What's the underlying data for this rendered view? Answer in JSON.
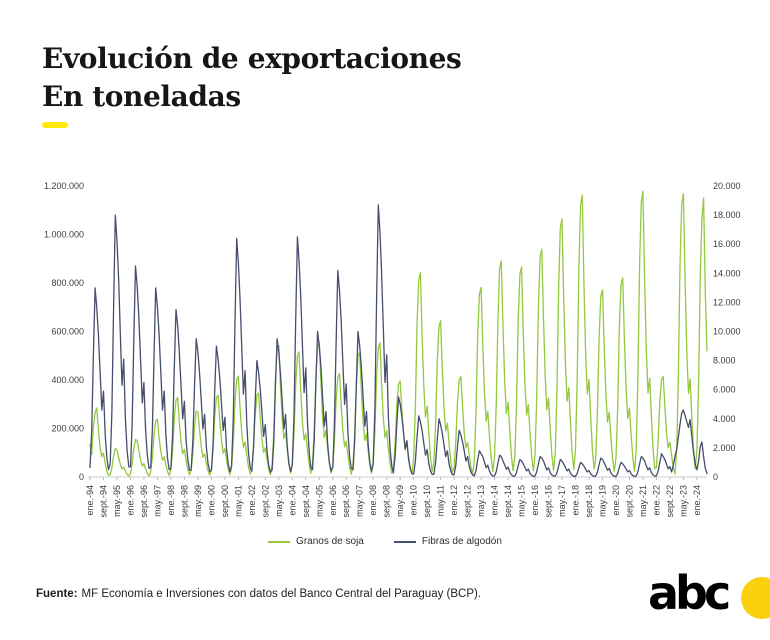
{
  "header": {
    "title_line1": "Evolución de exportaciones",
    "title_line2": "En toneladas",
    "accent_color": "#ffe80a"
  },
  "chart_data": {
    "type": "line",
    "title": "Evolución de exportaciones",
    "subtitle": "En toneladas",
    "grid": false,
    "legend_position": "bottom",
    "x_axis": {
      "start": "1994-01",
      "end": "2024-07",
      "frequency": "monthly",
      "tick_every_months": 8,
      "tick_labels": [
        "ene.-94",
        "sept.-94",
        "may.-95",
        "ene.-96",
        "sept.-96",
        "may.-97",
        "ene.-98",
        "sept.-98",
        "may.-99",
        "ene.-00",
        "sept.-00",
        "may.-01",
        "ene.-02",
        "sept.-02",
        "may.-03",
        "ene.-04",
        "sept.-04",
        "may.-05",
        "ene.-06",
        "sept.-06",
        "may.-07",
        "ene.-08",
        "sept.-08",
        "may.-09",
        "ene.-10",
        "sept.-10",
        "may.-11",
        "ene.-12",
        "sept.-12",
        "may.-13",
        "ene.-14",
        "sept.-14",
        "may.-15",
        "ene.-16",
        "sept.-16",
        "may.-17",
        "ene.-18",
        "sept.-18",
        "may.-19",
        "ene.-20",
        "sept.-20",
        "may.-21",
        "ene.-22",
        "sept.-22",
        "may.-23",
        "ene.-24"
      ]
    },
    "y_left": {
      "min": 0,
      "max": 1200000,
      "tick_labels": [
        "0",
        "200.000",
        "400.000",
        "600.000",
        "800.000",
        "1.000.000",
        "1.200.000"
      ]
    },
    "y_right": {
      "min": 0,
      "max": 20000,
      "tick_labels": [
        "0",
        "2.000",
        "4.000",
        "6.000",
        "8.000",
        "10.000",
        "12.000",
        "14.000",
        "16.000",
        "18.000",
        "20.000"
      ]
    },
    "series": [
      {
        "name": "Granos de soja",
        "axis": "left",
        "color": "#94c83f",
        "values": [
          135000,
          92000,
          208000,
          264000,
          285000,
          198000,
          122000,
          84000,
          99000,
          56000,
          22000,
          7000,
          10000,
          38000,
          86000,
          118000,
          111000,
          79000,
          52000,
          34000,
          41000,
          24000,
          11000,
          4000,
          14000,
          52000,
          118000,
          155000,
          149000,
          108000,
          70000,
          45000,
          55000,
          33000,
          15000,
          5000,
          22000,
          80000,
          176000,
          231000,
          238000,
          163000,
          105000,
          69000,
          82000,
          50000,
          22000,
          7000,
          31000,
          112000,
          243000,
          318000,
          327000,
          226000,
          146000,
          96000,
          113000,
          70000,
          31000,
          9000,
          26000,
          95000,
          206000,
          272000,
          268000,
          192000,
          124000,
          82000,
          95000,
          59000,
          26000,
          8000,
          32000,
          116000,
          250000,
          328000,
          337000,
          233000,
          150000,
          99000,
          117000,
          72000,
          32000,
          10000,
          40000,
          144000,
          310000,
          402000,
          416000,
          288000,
          185000,
          123000,
          144000,
          89000,
          40000,
          12000,
          33000,
          120000,
          258000,
          336000,
          346000,
          240000,
          154000,
          102000,
          120000,
          74000,
          33000,
          10000,
          52000,
          187000,
          402000,
          521000,
          541000,
          374000,
          240000,
          159000,
          187000,
          115000,
          52000,
          16000,
          50000,
          178000,
          384000,
          497000,
          516000,
          357000,
          229000,
          152000,
          178000,
          110000,
          50000,
          15000,
          53000,
          192000,
          413000,
          535000,
          554000,
          384000,
          246000,
          163000,
          192000,
          118000,
          53000,
          16000,
          41000,
          147000,
          317000,
          411000,
          426000,
          295000,
          189000,
          125000,
          147000,
          91000,
          41000,
          12000,
          49000,
          178000,
          383000,
          496000,
          514000,
          356000,
          228000,
          151000,
          178000,
          109000,
          49000,
          15000,
          53000,
          191000,
          412000,
          534000,
          553000,
          383000,
          245000,
          162000,
          191000,
          117000,
          53000,
          16000,
          38000,
          137000,
          295000,
          383000,
          396000,
          274000,
          176000,
          117000,
          137000,
          84000,
          38000,
          12000,
          81000,
          291000,
          627000,
          813000,
          842000,
          583000,
          374000,
          248000,
          291000,
          179000,
          81000,
          24000,
          62000,
          222000,
          479000,
          622000,
          644000,
          446000,
          286000,
          190000,
          222000,
          137000,
          62000,
          19000,
          41000,
          146000,
          312000,
          400000,
          414000,
          286000,
          183000,
          121000,
          143000,
          88000,
          41000,
          13000,
          75000,
          270000,
          583000,
          755000,
          782000,
          541000,
          347000,
          230000,
          270000,
          166000,
          75000,
          23000,
          86000,
          308000,
          664000,
          860000,
          891000,
          617000,
          396000,
          262000,
          308000,
          189000,
          86000,
          26000,
          83000,
          299000,
          645000,
          836000,
          866000,
          600000,
          385000,
          255000,
          299000,
          184000,
          83000,
          25000,
          90000,
          325000,
          701000,
          908000,
          940000,
          651000,
          418000,
          277000,
          325000,
          200000,
          90000,
          27000,
          102000,
          368000,
          793000,
          1027000,
          1064000,
          737000,
          473000,
          313000,
          368000,
          227000,
          102000,
          31000,
          112000,
          402000,
          867000,
          1123000,
          1163000,
          805000,
          517000,
          342000,
          402000,
          247000,
          112000,
          34000,
          74000,
          267000,
          575000,
          745000,
          772000,
          535000,
          343000,
          227000,
          267000,
          164000,
          74000,
          22000,
          79000,
          284000,
          612000,
          793000,
          821000,
          569000,
          365000,
          242000,
          284000,
          175000,
          79000,
          24000,
          113000,
          407000,
          878000,
          1137000,
          1178000,
          816000,
          523000,
          347000,
          407000,
          250000,
          113000,
          34000,
          40000,
          144000,
          310000,
          401000,
          415000,
          287000,
          184000,
          122000,
          143000,
          88000,
          40000,
          12000,
          112000,
          404000,
          871000,
          1128000,
          1168000,
          809000,
          519000,
          344000,
          404000,
          248000,
          112000,
          34000,
          110000,
          385000,
          835000,
          1060000,
          1150000,
          760000,
          520000
        ]
      },
      {
        "name": "Fibras de algodón",
        "axis": "right",
        "color": "#474d6d",
        "values": [
          650,
          3200,
          8400,
          13000,
          11700,
          9800,
          7200,
          4600,
          5900,
          2900,
          1300,
          500,
          900,
          4500,
          11700,
          18000,
          16200,
          13500,
          9900,
          6300,
          8100,
          4000,
          1800,
          700,
          700,
          3600,
          9400,
          14500,
          13100,
          10900,
          8000,
          5100,
          6500,
          3200,
          1500,
          600,
          650,
          3300,
          8500,
          13000,
          11700,
          9800,
          7200,
          4600,
          5900,
          2900,
          1300,
          500,
          580,
          2900,
          7500,
          11500,
          10400,
          8600,
          6300,
          4000,
          5200,
          2500,
          1200,
          460,
          480,
          2400,
          6200,
          9500,
          8600,
          7100,
          5200,
          3300,
          4300,
          2100,
          950,
          380,
          450,
          2300,
          5900,
          9000,
          8100,
          6800,
          5000,
          3200,
          4100,
          2000,
          900,
          360,
          820,
          4100,
          10700,
          16400,
          14800,
          12300,
          9000,
          5700,
          7300,
          3600,
          1600,
          650,
          400,
          2000,
          5200,
          8000,
          7200,
          6000,
          4400,
          2800,
          3600,
          1800,
          800,
          320,
          480,
          2400,
          6200,
          9500,
          8600,
          7100,
          5200,
          3300,
          4300,
          2100,
          950,
          380,
          830,
          4200,
          10800,
          16500,
          14900,
          12500,
          9100,
          5800,
          7500,
          3700,
          1700,
          660,
          500,
          2500,
          6500,
          10000,
          9000,
          7500,
          5500,
          3500,
          4500,
          2200,
          1000,
          400,
          710,
          3600,
          9200,
          14200,
          12800,
          10700,
          7800,
          5000,
          6400,
          3100,
          1400,
          570,
          500,
          2500,
          6500,
          10000,
          9000,
          7500,
          5500,
          3500,
          4500,
          2200,
          1000,
          400,
          940,
          4700,
          12200,
          18700,
          16800,
          14000,
          10300,
          6500,
          8400,
          4100,
          1900,
          750,
          280,
          1400,
          3600,
          5500,
          5000,
          4100,
          3000,
          1900,
          2500,
          1200,
          550,
          220,
          210,
          1100,
          2700,
          4200,
          3800,
          3200,
          2300,
          1500,
          1900,
          920,
          420,
          170,
          200,
          1000,
          2600,
          4000,
          3600,
          3000,
          2200,
          1400,
          1800,
          880,
          400,
          160,
          160,
          800,
          2100,
          3200,
          2900,
          2400,
          1800,
          1100,
          1400,
          700,
          320,
          130,
          90,
          450,
          1200,
          1800,
          1600,
          1400,
          1000,
          630,
          810,
          400,
          180,
          70,
          80,
          380,
          980,
          1500,
          1400,
          1100,
          830,
          530,
          680,
          330,
          150,
          60,
          60,
          300,
          780,
          1200,
          1100,
          900,
          660,
          420,
          540,
          260,
          120,
          50,
          70,
          350,
          910,
          1400,
          1300,
          1100,
          770,
          490,
          630,
          310,
          140,
          60,
          60,
          300,
          780,
          1200,
          1100,
          900,
          660,
          420,
          540,
          260,
          120,
          50,
          50,
          250,
          650,
          1000,
          900,
          750,
          550,
          350,
          450,
          220,
          100,
          40,
          70,
          330,
          850,
          1300,
          1200,
          980,
          720,
          460,
          590,
          290,
          130,
          50,
          50,
          250,
          650,
          1000,
          900,
          750,
          550,
          350,
          450,
          220,
          100,
          40,
          70,
          350,
          910,
          1400,
          1300,
          1100,
          770,
          490,
          630,
          310,
          140,
          60,
          80,
          400,
          1000,
          1600,
          1400,
          1200,
          880,
          560,
          720,
          350,
          800,
          1400,
          1900,
          2700,
          3600,
          4400,
          4600,
          4200,
          3800,
          3400,
          3950,
          2800,
          1700,
          900,
          500,
          1100,
          2100,
          2400,
          1400,
          600,
          250
        ]
      }
    ]
  },
  "footer": {
    "source_label": "Fuente:",
    "source_text": "MF Economía e Inversiones con datos del Banco Central del Paraguay (BCP)."
  },
  "logo": {
    "text": "abc",
    "dot_color": "#fbd10e"
  }
}
